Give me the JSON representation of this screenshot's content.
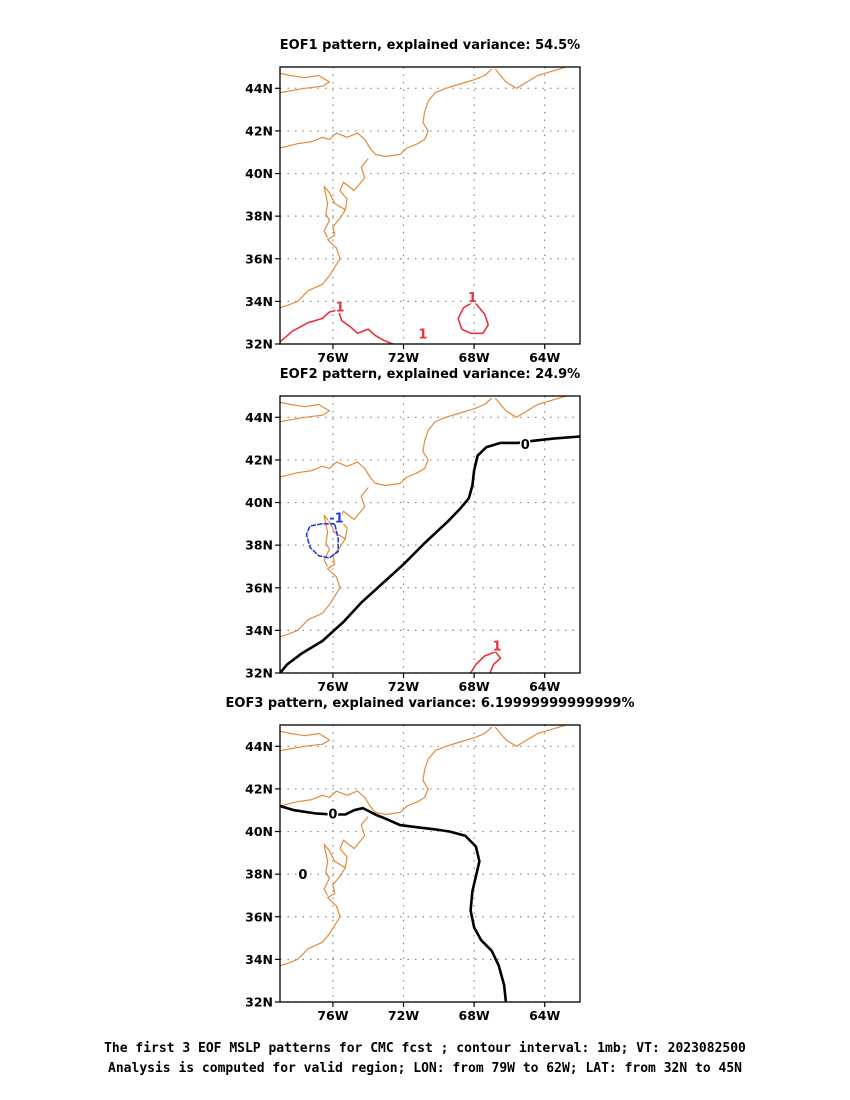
{
  "colors": {
    "coast": "#e58a3c",
    "positive": "#e8323c",
    "negative": "#1f3fe0",
    "zero": "#000000",
    "grid": "#8a8a8a"
  },
  "map_extent": {
    "lon": [
      -79,
      -62
    ],
    "lat": [
      32,
      45
    ]
  },
  "xticks": [
    {
      "lon": -76,
      "label": "76W"
    },
    {
      "lon": -72,
      "label": "72W"
    },
    {
      "lon": -68,
      "label": "68W"
    },
    {
      "lon": -64,
      "label": "64W"
    }
  ],
  "yticks": [
    {
      "lat": 44,
      "label": "44N"
    },
    {
      "lat": 42,
      "label": "42N"
    },
    {
      "lat": 40,
      "label": "40N"
    },
    {
      "lat": 38,
      "label": "38N"
    },
    {
      "lat": 36,
      "label": "36N"
    },
    {
      "lat": 34,
      "label": "34N"
    },
    {
      "lat": 32,
      "label": "32N"
    }
  ],
  "coastline": [
    [
      [
        -79,
        41.2
      ],
      [
        -78,
        41.4
      ],
      [
        -77.2,
        41.5
      ],
      [
        -76.6,
        41.7
      ],
      [
        -76.2,
        41.6
      ],
      [
        -75.8,
        41.9
      ],
      [
        -75.2,
        41.7
      ],
      [
        -74.6,
        41.9
      ],
      [
        -74.2,
        41.6
      ],
      [
        -73.9,
        41.2
      ],
      [
        -73.6,
        40.9
      ],
      [
        -73,
        40.8
      ],
      [
        -72.2,
        40.9
      ],
      [
        -71.8,
        41.2
      ],
      [
        -71.2,
        41.4
      ],
      [
        -70.8,
        41.6
      ],
      [
        -70.6,
        42
      ],
      [
        -70.9,
        42.4
      ],
      [
        -70.8,
        42.9
      ],
      [
        -70.6,
        43.4
      ],
      [
        -70.2,
        43.8
      ],
      [
        -69.6,
        44
      ],
      [
        -68.8,
        44.2
      ],
      [
        -68,
        44.4
      ],
      [
        -67.4,
        44.6
      ],
      [
        -67,
        44.9
      ]
    ],
    [
      [
        -79,
        43.8
      ],
      [
        -77.6,
        44
      ],
      [
        -76.6,
        44.1
      ],
      [
        -76.2,
        44.3
      ],
      [
        -76.8,
        44.6
      ],
      [
        -77.6,
        44.5
      ],
      [
        -78.4,
        44.6
      ],
      [
        -79,
        44.7
      ]
    ],
    [
      [
        -66.8,
        44.9
      ],
      [
        -66.2,
        44.3
      ],
      [
        -65.6,
        44
      ],
      [
        -65,
        44.3
      ],
      [
        -64.4,
        44.6
      ],
      [
        -63.6,
        44.8
      ],
      [
        -62.8,
        45
      ],
      [
        -62,
        45.2
      ]
    ],
    [
      [
        -74,
        40.7
      ],
      [
        -74.4,
        40.3
      ],
      [
        -74.2,
        39.8
      ],
      [
        -74.8,
        39.2
      ],
      [
        -75.4,
        39.6
      ],
      [
        -75.6,
        39.2
      ],
      [
        -75.2,
        38.8
      ],
      [
        -75.3,
        38.3
      ],
      [
        -75.6,
        37.9
      ],
      [
        -76,
        37.5
      ],
      [
        -75.9,
        37.1
      ],
      [
        -76.3,
        36.9
      ],
      [
        -75.8,
        36.5
      ],
      [
        -75.6,
        36
      ],
      [
        -75.9,
        35.6
      ],
      [
        -76.2,
        35.2
      ],
      [
        -76.6,
        34.8
      ],
      [
        -77.4,
        34.5
      ],
      [
        -78,
        34
      ],
      [
        -78.6,
        33.8
      ],
      [
        -79,
        33.7
      ]
    ],
    [
      [
        -75.3,
        38.3
      ],
      [
        -75.9,
        38.6
      ],
      [
        -76.2,
        39.1
      ],
      [
        -76.5,
        39.4
      ],
      [
        -76.3,
        38.6
      ],
      [
        -76.4,
        38.1
      ],
      [
        -76.2,
        37.8
      ],
      [
        -76.5,
        37.3
      ],
      [
        -76.3,
        37
      ]
    ]
  ],
  "panels": [
    {
      "title": "EOF1 pattern, explained variance: 54.5%",
      "contours": [
        {
          "kind": "positive",
          "dashed": false,
          "bold": false,
          "points": [
            [
              -79,
              32.1
            ],
            [
              -78.3,
              32.6
            ],
            [
              -77.4,
              33
            ],
            [
              -76.6,
              33.2
            ],
            [
              -76.2,
              33.5
            ],
            [
              -75.7,
              33.6
            ],
            [
              -75.5,
              33.1
            ],
            [
              -75,
              32.8
            ],
            [
              -74.6,
              32.5
            ],
            [
              -74,
              32.7
            ],
            [
              -73.6,
              32.4
            ],
            [
              -73.2,
              32.2
            ],
            [
              -72.6,
              32
            ]
          ]
        },
        {
          "kind": "positive",
          "dashed": false,
          "bold": false,
          "points": [
            [
              -68,
              34
            ],
            [
              -68.6,
              33.7
            ],
            [
              -68.9,
              33.2
            ],
            [
              -68.7,
              32.7
            ],
            [
              -68.2,
              32.5
            ],
            [
              -67.5,
              32.5
            ],
            [
              -67.2,
              32.9
            ],
            [
              -67.4,
              33.4
            ],
            [
              -67.8,
              33.8
            ],
            [
              -68,
              34
            ]
          ]
        }
      ],
      "labels": [
        {
          "text": "1",
          "kind": "positive",
          "lon": -75.6,
          "lat": 33.75
        },
        {
          "text": "1",
          "kind": "positive",
          "lon": -70.9,
          "lat": 32.5
        },
        {
          "text": "1",
          "kind": "positive",
          "lon": -68.1,
          "lat": 34.2
        }
      ]
    },
    {
      "title": "EOF2 pattern, explained variance: 24.9%",
      "contours": [
        {
          "kind": "zero",
          "dashed": false,
          "bold": true,
          "points": [
            [
              -79,
              32
            ],
            [
              -78.6,
              32.4
            ],
            [
              -77.8,
              32.9
            ],
            [
              -76.6,
              33.5
            ],
            [
              -75.4,
              34.4
            ],
            [
              -74.4,
              35.3
            ],
            [
              -73.2,
              36.2
            ],
            [
              -72,
              37.1
            ],
            [
              -70.8,
              38.1
            ],
            [
              -69.5,
              39.1
            ],
            [
              -68.8,
              39.7
            ],
            [
              -68.3,
              40.2
            ],
            [
              -68.1,
              40.8
            ],
            [
              -68,
              41.5
            ],
            [
              -67.8,
              42.2
            ],
            [
              -67.3,
              42.6
            ],
            [
              -66.5,
              42.8
            ],
            [
              -65.5,
              42.8
            ],
            [
              -64.6,
              42.9
            ],
            [
              -63.5,
              43
            ],
            [
              -62,
              43.1
            ]
          ]
        },
        {
          "kind": "negative",
          "dashed": true,
          "bold": false,
          "points": [
            [
              -75.9,
              39
            ],
            [
              -76.6,
              39
            ],
            [
              -77.3,
              38.9
            ],
            [
              -77.5,
              38.5
            ],
            [
              -77.3,
              37.9
            ],
            [
              -76.8,
              37.5
            ],
            [
              -76.2,
              37.4
            ],
            [
              -75.7,
              37.7
            ],
            [
              -75.7,
              38.3
            ],
            [
              -75.9,
              39
            ]
          ]
        },
        {
          "kind": "positive",
          "dashed": false,
          "bold": false,
          "points": [
            [
              -68.2,
              32
            ],
            [
              -67.9,
              32.4
            ],
            [
              -67.4,
              32.8
            ],
            [
              -66.8,
              33
            ],
            [
              -66.5,
              32.7
            ],
            [
              -66.9,
              32.4
            ],
            [
              -67.1,
              32
            ]
          ]
        }
      ],
      "labels": [
        {
          "text": "0",
          "kind": "zero",
          "lon": -65.1,
          "lat": 42.75
        },
        {
          "text": "-1",
          "kind": "negative",
          "lon": -75.8,
          "lat": 39.3
        },
        {
          "text": "1",
          "kind": "positive",
          "lon": -66.7,
          "lat": 33.3
        }
      ]
    },
    {
      "title": "EOF3 pattern, explained variance: 6.19999999999999%",
      "contours": [
        {
          "kind": "zero",
          "dashed": false,
          "bold": true,
          "points": [
            [
              -79,
              41.2
            ],
            [
              -78.2,
              41
            ],
            [
              -77,
              40.85
            ],
            [
              -76,
              40.8
            ],
            [
              -75.3,
              40.8
            ],
            [
              -74.8,
              41
            ],
            [
              -74.3,
              41.1
            ],
            [
              -73.6,
              40.8
            ],
            [
              -73,
              40.6
            ],
            [
              -72.2,
              40.3
            ],
            [
              -71.2,
              40.2
            ],
            [
              -70.2,
              40.1
            ],
            [
              -69.4,
              40
            ],
            [
              -68.5,
              39.8
            ],
            [
              -67.9,
              39.3
            ],
            [
              -67.7,
              38.6
            ],
            [
              -67.9,
              37.9
            ],
            [
              -68.1,
              37.2
            ],
            [
              -68.2,
              36.3
            ],
            [
              -68,
              35.5
            ],
            [
              -67.6,
              34.9
            ],
            [
              -67,
              34.4
            ],
            [
              -66.6,
              33.7
            ],
            [
              -66.3,
              32.8
            ],
            [
              -66.2,
              32
            ]
          ]
        }
      ],
      "labels": [
        {
          "text": "0",
          "kind": "zero",
          "lon": -76,
          "lat": 40.85
        },
        {
          "text": "0",
          "kind": "zero",
          "lon": -77.7,
          "lat": 38
        }
      ]
    }
  ],
  "caption": {
    "line1": "The first 3 EOF MSLP patterns for CMC fcst ; contour interval: 1mb; VT: 2023082500",
    "line2": "Analysis is computed for valid region; LON: from 79W to 62W; LAT: from 32N to 45N"
  }
}
